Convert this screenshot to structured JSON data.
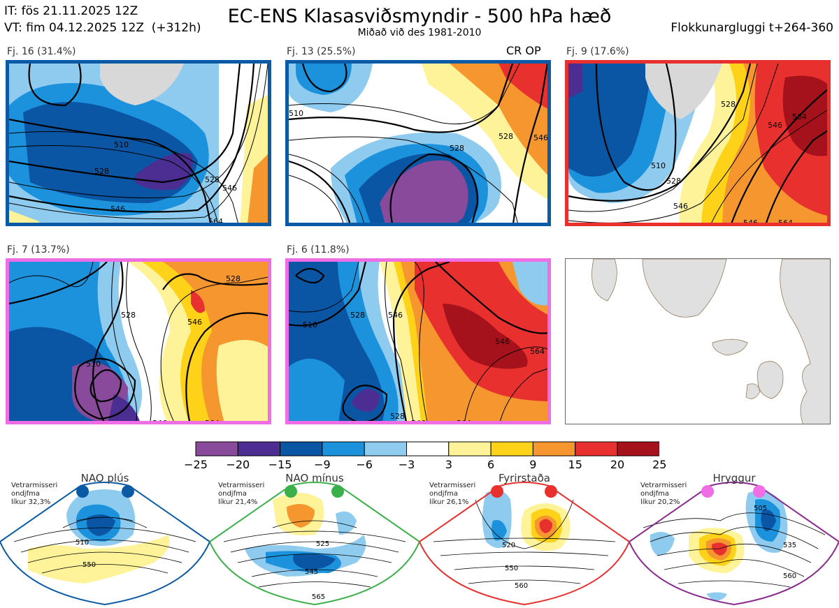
{
  "header": {
    "it_line": "IT: fös 21.11.2025 12Z",
    "vt_line": "VT: fim 04.12.2025 12Z  (+312h)",
    "title": "EC-ENS Klasasviðsmyndir - 500 hPa hæð",
    "subtitle": "Miðað við des 1981-2010",
    "window": "Flokkunargluggi t+264-360"
  },
  "panels": [
    {
      "label": "Fj. 16 (31.4%)",
      "border": "#0b5aa6",
      "contours": [
        "510",
        "528",
        "546",
        "528",
        "546",
        "564"
      ]
    },
    {
      "label": "Fj. 13 (25.5%)",
      "border": "#0b5aa6",
      "overlay": "CR OP",
      "contours": [
        "528",
        "510",
        "528",
        "546",
        "528",
        "546",
        "564"
      ]
    },
    {
      "label": "Fj. 9 (17.6%)",
      "border": "#e8302f",
      "contours": [
        "528",
        "546",
        "564",
        "510",
        "528",
        "546",
        "546",
        "564"
      ]
    },
    {
      "label": "Fj. 7 (13.7%)",
      "border": "#ef6ee6",
      "contours": [
        "528",
        "528",
        "546",
        "510",
        "546",
        "564"
      ]
    },
    {
      "label": "Fj. 6 (11.8%)",
      "border": "#ef6ee6",
      "contours": [
        "510",
        "528",
        "546",
        "546",
        "564",
        "528",
        "546",
        "564"
      ]
    }
  ],
  "colorbar": {
    "ticks": [
      "−25",
      "−20",
      "−15",
      "−9",
      "−6",
      "−3",
      "3",
      "6",
      "9",
      "15",
      "20",
      "25"
    ],
    "colors": [
      "#8a4a9c",
      "#4c2d92",
      "#0b56a4",
      "#1d92dc",
      "#8ecbee",
      "#ffffff",
      "#fff39a",
      "#ffd21a",
      "#f5962f",
      "#e8302f",
      "#a6121c"
    ]
  },
  "regimes": [
    {
      "name": "NAO plús",
      "note_1": "Vetrarmisseri",
      "note_2": "ondjfma",
      "note_3": "líkur 32,3%",
      "frame": "#0b5aa6",
      "dot": "#0b5aa6",
      "contours": [
        "510",
        "550"
      ]
    },
    {
      "name": "NAO mínus",
      "note_1": "Vetrarmisseri",
      "note_2": "ondjfma",
      "note_3": "líkur 21,4%",
      "frame": "#3bb04a",
      "dot": "#3bb04a",
      "contours": [
        "525",
        "545",
        "565"
      ]
    },
    {
      "name": "Fyrirstaða",
      "note_1": "Vetrarmisseri",
      "note_2": "ondjfma",
      "note_3": "líkur 26,1%",
      "frame": "#e8302f",
      "dot": "#e8302f",
      "contours": [
        "520",
        "550",
        "560"
      ]
    },
    {
      "name": "Hryggur",
      "note_1": "Vetrarmisseri",
      "note_2": "ondjfma",
      "note_3": "líkur 20,2%",
      "frame": "#8a2a8e",
      "dot": "#ef6ee6",
      "contours": [
        "505",
        "535",
        "560"
      ]
    }
  ]
}
